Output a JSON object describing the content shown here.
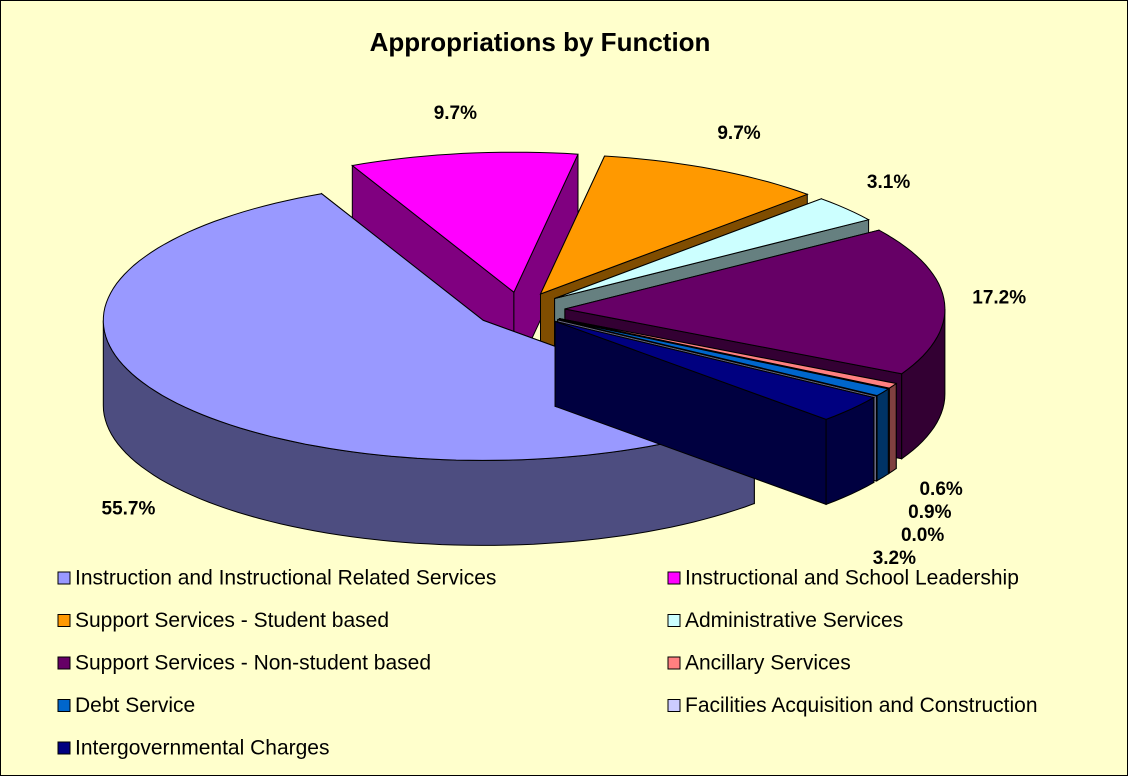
{
  "chart_data": {
    "type": "pie3d",
    "title": "Appropriations by Function",
    "categories": [
      "Instruction and Instructional Related Services",
      "Instructional and School Leadership",
      "Support Services - Student based",
      "Administrative Services",
      "Support Services - Non-student based",
      "Ancillary Services",
      "Debt Service",
      "Facilities Acquisition and Construction",
      "Intergovernmental Charges"
    ],
    "values": [
      55.7,
      9.7,
      9.7,
      3.1,
      17.2,
      0.6,
      0.9,
      0.0,
      3.2
    ],
    "value_labels": [
      "55.7%",
      "9.7%",
      "9.7%",
      "3.1%",
      "17.2%",
      "0.6%",
      "0.9%",
      "0.0%",
      "3.2%"
    ],
    "colors": [
      "#9999ff",
      "#ff00ff",
      "#ff9900",
      "#ccffff",
      "#660066",
      "#ff8080",
      "#0066cc",
      "#ccccff",
      "#000080"
    ],
    "legend": "bottom"
  }
}
